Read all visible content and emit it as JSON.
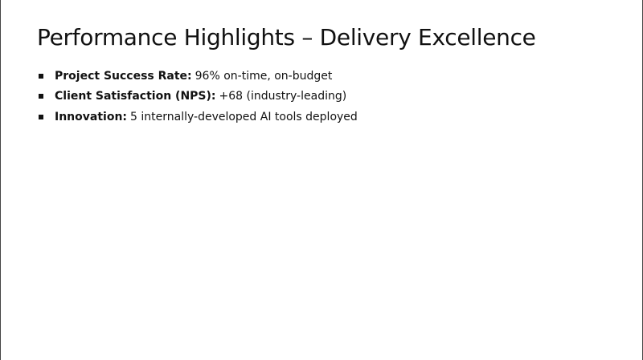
{
  "slide": {
    "title": "Performance Highlights – Delivery Excellence",
    "bullets": [
      {
        "label": "Project Success Rate:",
        "text": "96% on-time, on-budget"
      },
      {
        "label": "Client Satisfaction (NPS):",
        "text": "+68 (industry-leading)"
      },
      {
        "label": "Innovation:",
        "text": "5 internally-developed AI tools deployed"
      }
    ]
  }
}
